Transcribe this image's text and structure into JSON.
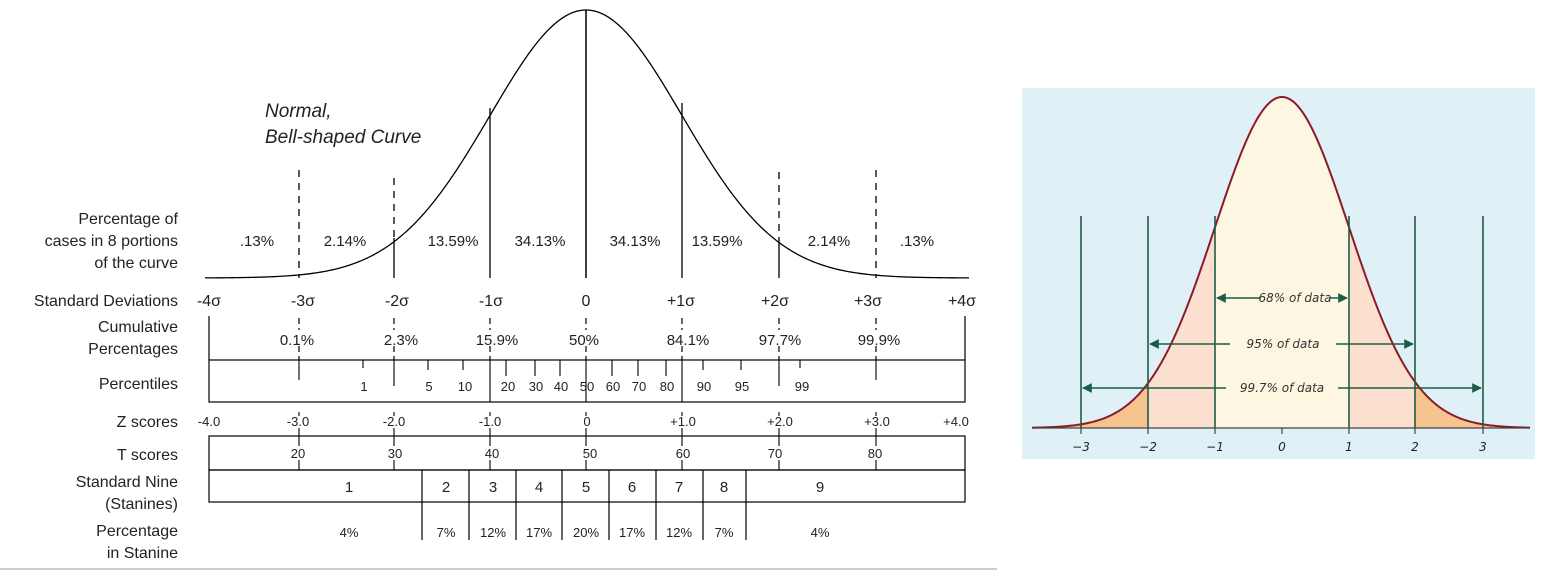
{
  "left": {
    "curve_label": [
      "Normal,",
      "Bell-shaped Curve"
    ],
    "row_labels": {
      "pct_cases": [
        "Percentage of",
        "cases in 8 portions",
        "of the curve"
      ],
      "sd": "Standard Deviations",
      "cumulative": [
        "Cumulative",
        "Percentages"
      ],
      "percentiles": "Percentiles",
      "z": "Z scores",
      "t": "T scores",
      "stanine": [
        "Standard Nine",
        "(Stanines)"
      ],
      "pct_stanine": [
        "Percentage",
        "in Stanine"
      ]
    },
    "portion_pcts": [
      ".13%",
      "2.14%",
      "13.59%",
      "34.13%",
      "34.13%",
      "13.59%",
      "2.14%",
      ".13%"
    ],
    "sd_labels": [
      "-4σ",
      "-3σ",
      "-2σ",
      "-1σ",
      "0",
      "+1σ",
      "+2σ",
      "+3σ",
      "+4σ"
    ],
    "cumulative_pcts": [
      "0.1%",
      "2.3%",
      "15.9%",
      "50%",
      "84.1%",
      "97.7%",
      "99.9%"
    ],
    "percentiles": [
      "1",
      "5",
      "10",
      "20",
      "30",
      "40",
      "50",
      "60",
      "70",
      "80",
      "90",
      "95",
      "99"
    ],
    "z_scores": [
      "-4.0",
      "-3.0",
      "-2.0",
      "-1.0",
      "0",
      "+1.0",
      "+2.0",
      "+3.0",
      "+4.0"
    ],
    "t_scores": [
      "20",
      "30",
      "40",
      "50",
      "60",
      "70",
      "80"
    ],
    "stanines": [
      "1",
      "2",
      "3",
      "4",
      "5",
      "6",
      "7",
      "8",
      "9"
    ],
    "stanine_pcts": [
      "4%",
      "7%",
      "12%",
      "17%",
      "20%",
      "17%",
      "12%",
      "7%",
      "4%"
    ]
  },
  "right": {
    "bands": [
      "68% of data",
      "95% of data",
      "99.7% of data"
    ],
    "ticks": [
      "−3",
      "−2",
      "−1",
      "0",
      "1",
      "2",
      "3"
    ],
    "colors": {
      "background": "#dff0f7",
      "curve": "#8b1a2b",
      "inner": "#fdf6e0",
      "middle": "#fbe0cf",
      "outer": "#f6c48e",
      "lines": "#1d5d46"
    }
  }
}
